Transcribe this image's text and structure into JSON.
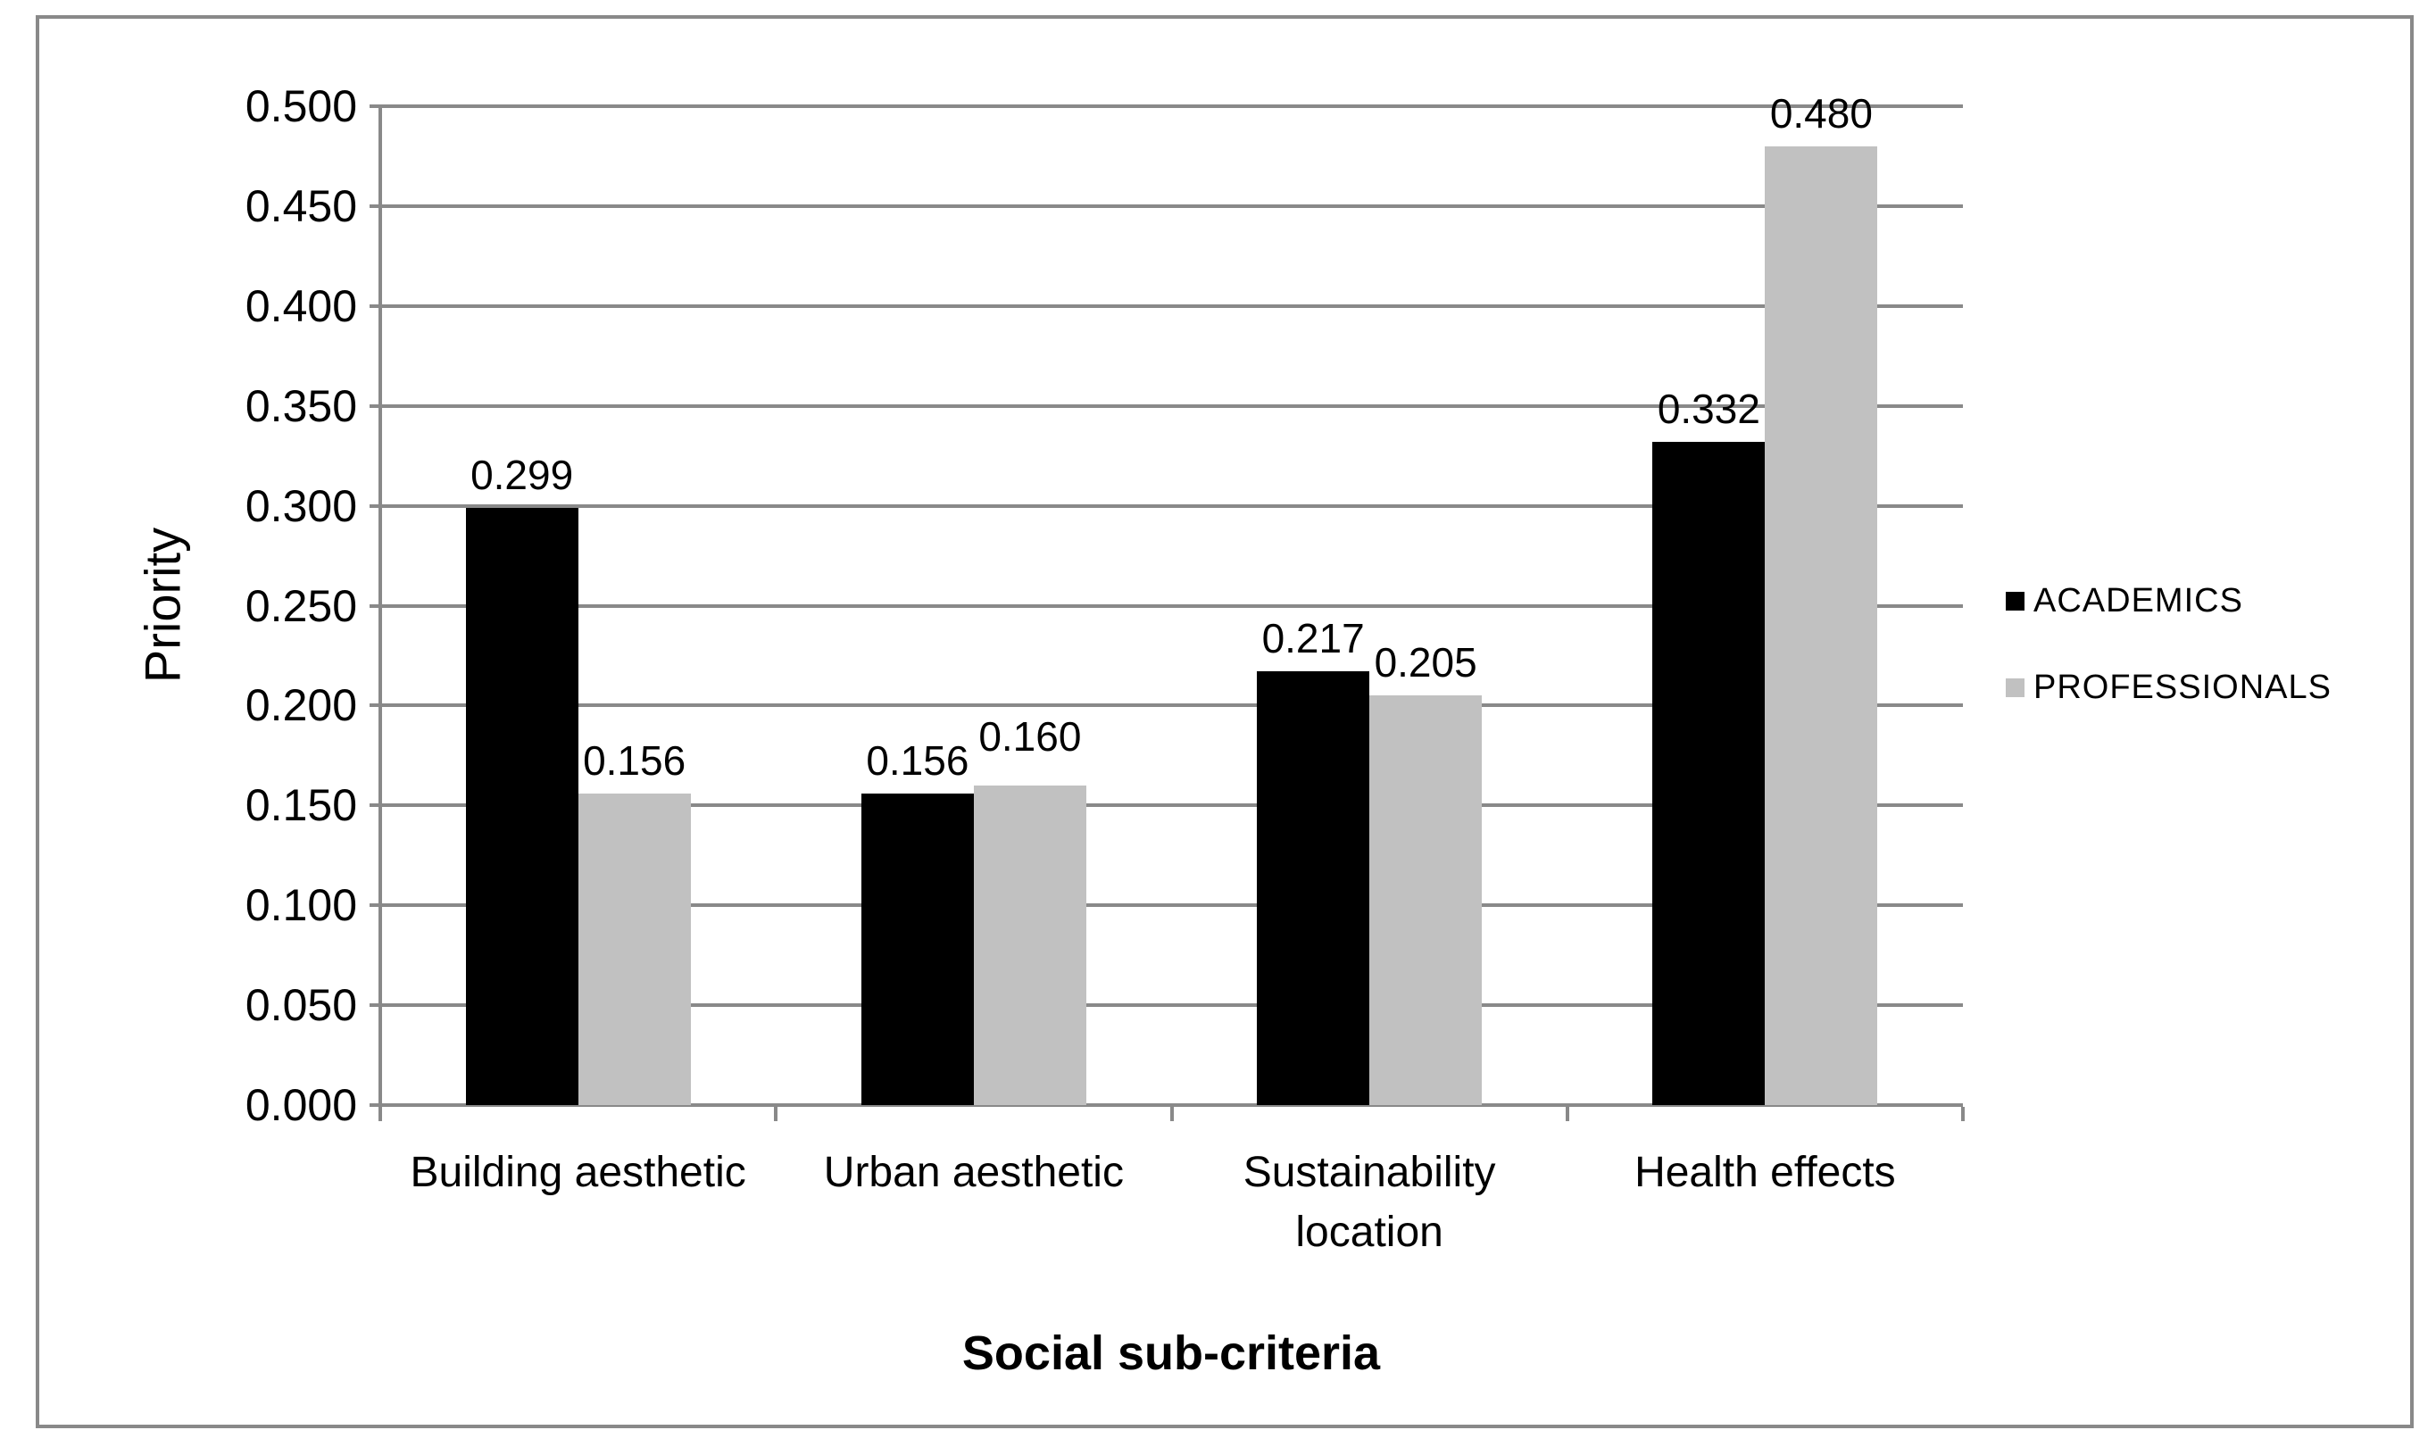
{
  "figure": {
    "background_color": "#ffffff",
    "border_color": "#898989"
  },
  "chart_data": {
    "type": "bar",
    "title": "",
    "xlabel": "Social sub-criteria",
    "ylabel": "Priority",
    "categories": [
      "Building aesthetic",
      "Urban aesthetic",
      "Sustainability location",
      "Health effects"
    ],
    "series": [
      {
        "name": "ACADEMICS",
        "color": "#000000",
        "values": [
          0.299,
          0.156,
          0.217,
          0.332
        ],
        "data_labels": [
          "0.299",
          "0.156",
          "0.217",
          "0.332"
        ]
      },
      {
        "name": "PROFESSIONALS",
        "color": "#C1C1C1",
        "values": [
          0.156,
          0.16,
          0.205,
          0.48
        ],
        "data_labels": [
          "0.156",
          "0.160",
          "0.205",
          "0.480"
        ]
      }
    ],
    "ylim": [
      0.0,
      0.5
    ],
    "ytick_step": 0.05,
    "ytick_labels": [
      "0.000",
      "0.050",
      "0.100",
      "0.150",
      "0.200",
      "0.250",
      "0.300",
      "0.350",
      "0.400",
      "0.450",
      "0.500"
    ],
    "grid": "horizontal",
    "gridline_color": "#898989",
    "legend_position": "right"
  }
}
